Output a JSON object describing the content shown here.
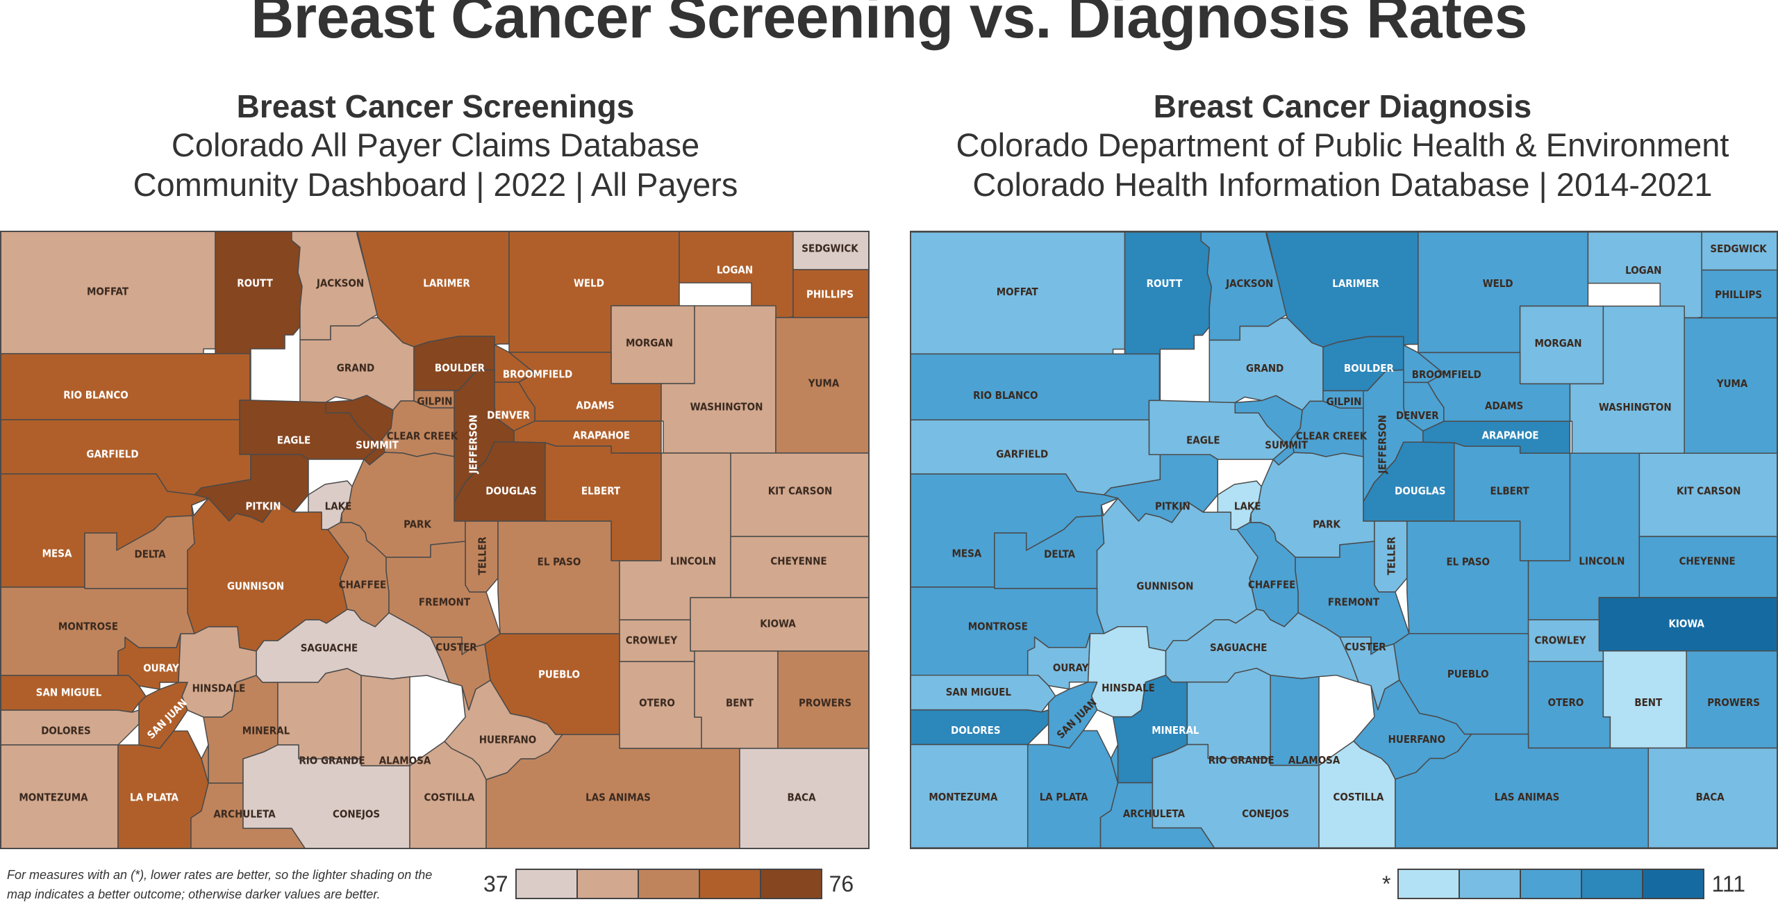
{
  "title": "Breast Cancer Screening vs. Diagnosis Rates",
  "left_panel": {
    "heading": "Breast Cancer Screenings",
    "source_line1": "Colorado All Payer Claims Database",
    "source_line2": "Community Dashboard | 2022 | All Payers",
    "legend": {
      "min": "37",
      "max": "76"
    }
  },
  "right_panel": {
    "heading": "Breast Cancer Diagnosis",
    "source_line1": "Colorado Department of Public Health & Environment",
    "source_line2": "Colorado Health Information Database | 2014-2021",
    "legend": {
      "min": "*",
      "max": "111"
    }
  },
  "footnote": "For measures with an (*), lower rates are better, so the lighter shading on the map indicates a better outcome; otherwise darker values are better.",
  "colors": {
    "brown": [
      "#dcccc8",
      "#d2a88e",
      "#c0845c",
      "#b05f2a",
      "#864620"
    ],
    "blue": [
      "#b2e0f4",
      "#78bde3",
      "#4ca2d3",
      "#2c87bb",
      "#156ba1"
    ],
    "border": "#4a4a4a"
  },
  "counties": [
    {
      "name": "MOFFAT",
      "screening": 1,
      "diagnosis": 1
    },
    {
      "name": "ROUTT",
      "screening": 4,
      "diagnosis": 3
    },
    {
      "name": "JACKSON",
      "screening": 1,
      "diagnosis": 2
    },
    {
      "name": "LARIMER",
      "screening": 3,
      "diagnosis": 3
    },
    {
      "name": "WELD",
      "screening": 3,
      "diagnosis": 2
    },
    {
      "name": "LOGAN",
      "screening": 3,
      "diagnosis": 1
    },
    {
      "name": "SEDGWICK",
      "screening": 0,
      "diagnosis": 1
    },
    {
      "name": "PHILLIPS",
      "screening": 3,
      "diagnosis": 2
    },
    {
      "name": "RIO BLANCO",
      "screening": 3,
      "diagnosis": 2
    },
    {
      "name": "GRAND",
      "screening": 1,
      "diagnosis": 1
    },
    {
      "name": "BOULDER",
      "screening": 4,
      "diagnosis": 3
    },
    {
      "name": "BROOMFIELD",
      "screening": 3,
      "diagnosis": 2
    },
    {
      "name": "MORGAN",
      "screening": 1,
      "diagnosis": 1
    },
    {
      "name": "GILPIN",
      "screening": 2,
      "diagnosis": 2
    },
    {
      "name": "ADAMS",
      "screening": 3,
      "diagnosis": 2
    },
    {
      "name": "WASHINGTON",
      "screening": 1,
      "diagnosis": 1
    },
    {
      "name": "YUMA",
      "screening": 2,
      "diagnosis": 2
    },
    {
      "name": "EAGLE",
      "screening": 4,
      "diagnosis": 1
    },
    {
      "name": "CLEAR CREEK",
      "screening": 2,
      "diagnosis": 2
    },
    {
      "name": "DENVER",
      "screening": 3,
      "diagnosis": 2
    },
    {
      "name": "ARAPAHOE",
      "screening": 3,
      "diagnosis": 3
    },
    {
      "name": "SUMMIT",
      "screening": 4,
      "diagnosis": 2
    },
    {
      "name": "JEFFERSON",
      "screening": 4,
      "diagnosis": 2
    },
    {
      "name": "GARFIELD",
      "screening": 3,
      "diagnosis": 1
    },
    {
      "name": "PITKIN",
      "screening": 4,
      "diagnosis": 2
    },
    {
      "name": "LAKE",
      "screening": 0,
      "diagnosis": 0
    },
    {
      "name": "DOUGLAS",
      "screening": 4,
      "diagnosis": 3
    },
    {
      "name": "ELBERT",
      "screening": 3,
      "diagnosis": 2
    },
    {
      "name": "KIT CARSON",
      "screening": 1,
      "diagnosis": 1
    },
    {
      "name": "PARK",
      "screening": 2,
      "diagnosis": 1
    },
    {
      "name": "MESA",
      "screening": 3,
      "diagnosis": 2
    },
    {
      "name": "DELTA",
      "screening": 2,
      "diagnosis": 2
    },
    {
      "name": "TELLER",
      "screening": 2,
      "diagnosis": 1
    },
    {
      "name": "EL PASO",
      "screening": 2,
      "diagnosis": 2
    },
    {
      "name": "LINCOLN",
      "screening": 1,
      "diagnosis": 2
    },
    {
      "name": "CHEYENNE",
      "screening": 1,
      "diagnosis": 2
    },
    {
      "name": "GUNNISON",
      "screening": 3,
      "diagnosis": 1
    },
    {
      "name": "CHAFFEE",
      "screening": 2,
      "diagnosis": 2
    },
    {
      "name": "FREMONT",
      "screening": 2,
      "diagnosis": 2
    },
    {
      "name": "MONTROSE",
      "screening": 2,
      "diagnosis": 2
    },
    {
      "name": "KIOWA",
      "screening": 1,
      "diagnosis": 4
    },
    {
      "name": "CROWLEY",
      "screening": 1,
      "diagnosis": 1
    },
    {
      "name": "OURAY",
      "screening": 3,
      "diagnosis": 1
    },
    {
      "name": "SAGUACHE",
      "screening": 0,
      "diagnosis": 1
    },
    {
      "name": "CUSTER",
      "screening": 2,
      "diagnosis": 1
    },
    {
      "name": "PUEBLO",
      "screening": 3,
      "diagnosis": 2
    },
    {
      "name": "SAN MIGUEL",
      "screening": 3,
      "diagnosis": 1
    },
    {
      "name": "HINSDALE",
      "screening": 1,
      "diagnosis": 0
    },
    {
      "name": "OTERO",
      "screening": 1,
      "diagnosis": 2
    },
    {
      "name": "BENT",
      "screening": 1,
      "diagnosis": 0
    },
    {
      "name": "PROWERS",
      "screening": 2,
      "diagnosis": 2
    },
    {
      "name": "DOLORES",
      "screening": 1,
      "diagnosis": 3
    },
    {
      "name": "SAN JUAN",
      "screening": 3,
      "diagnosis": 2
    },
    {
      "name": "MINERAL",
      "screening": 2,
      "diagnosis": 3
    },
    {
      "name": "HUERFANO",
      "screening": 1,
      "diagnosis": 2
    },
    {
      "name": "RIO GRANDE",
      "screening": 1,
      "diagnosis": 1
    },
    {
      "name": "ALAMOSA",
      "screening": 1,
      "diagnosis": 2
    },
    {
      "name": "MONTEZUMA",
      "screening": 1,
      "diagnosis": 1
    },
    {
      "name": "LA PLATA",
      "screening": 3,
      "diagnosis": 2
    },
    {
      "name": "ARCHULETA",
      "screening": 2,
      "diagnosis": 2
    },
    {
      "name": "CONEJOS",
      "screening": 0,
      "diagnosis": 1
    },
    {
      "name": "COSTILLA",
      "screening": 1,
      "diagnosis": 0
    },
    {
      "name": "LAS ANIMAS",
      "screening": 2,
      "diagnosis": 2
    },
    {
      "name": "BACA",
      "screening": 0,
      "diagnosis": 1
    }
  ]
}
